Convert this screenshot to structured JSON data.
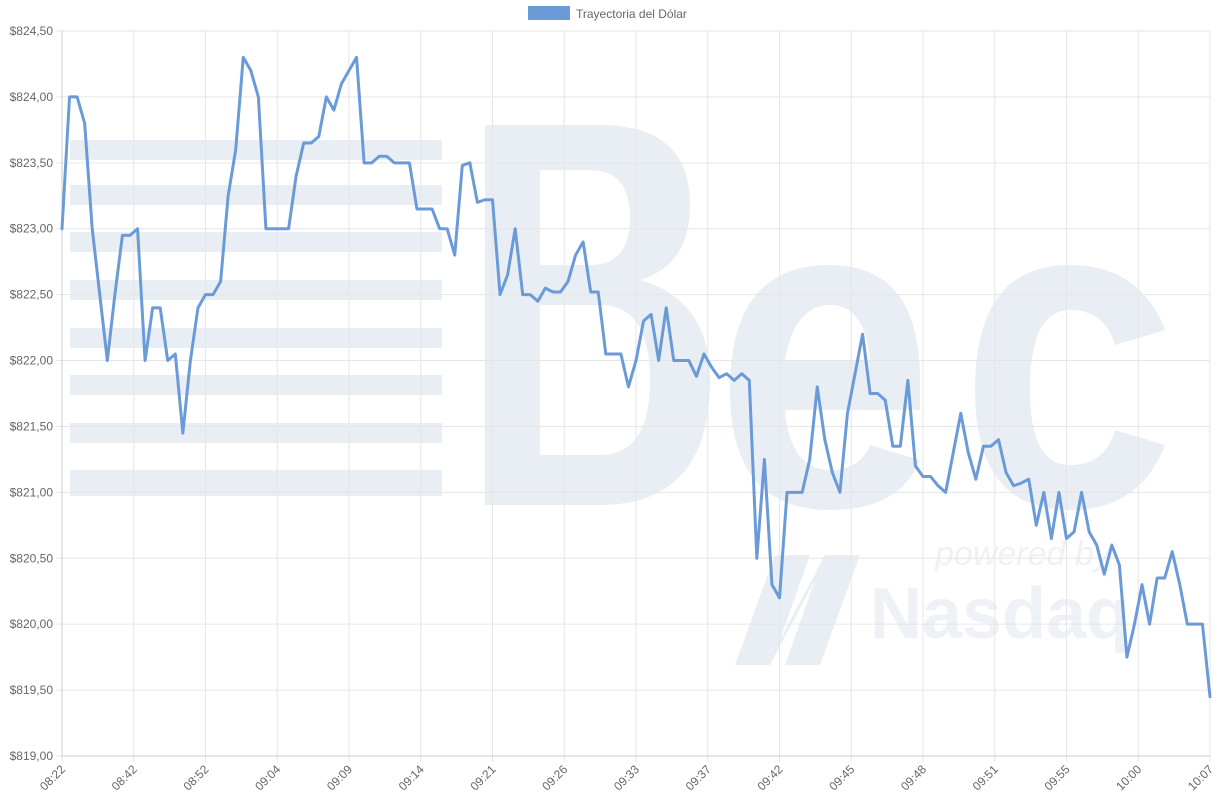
{
  "chart_data": {
    "type": "line",
    "legend": {
      "position": "top",
      "label": "Trayectoria del Dólar"
    },
    "ylim": [
      819.0,
      824.5
    ],
    "y_ticks": [
      "$819,00",
      "$819,50",
      "$820,00",
      "$820,50",
      "$821,00",
      "$821,50",
      "$822,00",
      "$822,50",
      "$823,00",
      "$823,50",
      "$824,00",
      "$824,50"
    ],
    "x_tick_labels": [
      "08:22",
      "08:42",
      "08:52",
      "09:04",
      "09:09",
      "09:14",
      "09:21",
      "09:26",
      "09:33",
      "09:37",
      "09:42",
      "09:45",
      "09:48",
      "09:51",
      "09:55",
      "10:00",
      "10:07"
    ],
    "grid": true,
    "colors": {
      "line": "#6a9bd8",
      "legend": "#6a9bd8",
      "grid": "#e6e6e6",
      "axis": "#cccccc",
      "watermark": "#e9eef5"
    },
    "series": [
      {
        "name": "Trayectoria del Dólar",
        "values": [
          823.0,
          824.0,
          824.0,
          823.8,
          823.0,
          822.5,
          822.0,
          822.5,
          822.95,
          822.95,
          823.0,
          822.0,
          822.4,
          822.4,
          822.0,
          822.05,
          821.45,
          822.0,
          822.4,
          822.5,
          822.5,
          822.6,
          823.25,
          823.6,
          824.3,
          824.2,
          824.0,
          823.0,
          823.0,
          823.0,
          823.0,
          823.4,
          823.65,
          823.65,
          823.7,
          824.0,
          823.9,
          824.1,
          824.2,
          824.3,
          823.5,
          823.5,
          823.55,
          823.55,
          823.5,
          823.5,
          823.5,
          823.15,
          823.15,
          823.15,
          823.0,
          823.0,
          822.8,
          823.48,
          823.5,
          823.2,
          823.22,
          823.22,
          822.5,
          822.65,
          823.0,
          822.5,
          822.5,
          822.45,
          822.55,
          822.52,
          822.52,
          822.6,
          822.8,
          822.9,
          822.52,
          822.52,
          822.05,
          822.05,
          822.05,
          821.8,
          822.0,
          822.3,
          822.35,
          822.0,
          822.4,
          822.0,
          822.0,
          822.0,
          821.88,
          822.05,
          821.95,
          821.87,
          821.9,
          821.85,
          821.9,
          821.85,
          820.5,
          821.25,
          820.3,
          820.2,
          821.0,
          821.0,
          821.0,
          821.25,
          821.8,
          821.4,
          821.15,
          821.0,
          821.6,
          821.9,
          822.2,
          821.75,
          821.75,
          821.7,
          821.35,
          821.35,
          821.85,
          821.2,
          821.12,
          821.12,
          821.05,
          821.0,
          821.3,
          821.6,
          821.3,
          821.1,
          821.35,
          821.35,
          821.4,
          821.15,
          821.05,
          821.07,
          821.1,
          820.75,
          821.0,
          820.65,
          821.0,
          820.65,
          820.7,
          821.0,
          820.7,
          820.6,
          820.38,
          820.6,
          820.45,
          819.75,
          820.0,
          820.3,
          820.0,
          820.35,
          820.35,
          820.55,
          820.3,
          820.0,
          820.0,
          820.0,
          819.45
        ]
      }
    ]
  }
}
